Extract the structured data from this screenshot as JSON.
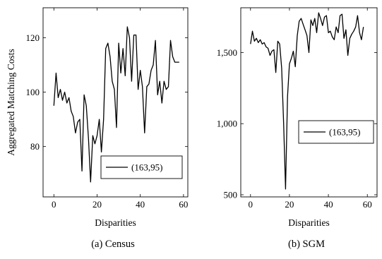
{
  "chart_data": [
    {
      "type": "line",
      "caption": "(a)  Census",
      "xlabel": "Disparities",
      "ylabel": "Aggregated Matching Costs",
      "xlim": [
        -5,
        62
      ],
      "ylim": [
        61.5,
        131
      ],
      "xticks": [
        0,
        20,
        40,
        60
      ],
      "yticks": [
        80,
        100,
        120
      ],
      "ytick_labels": [
        "80",
        "100",
        "120"
      ],
      "legend": {
        "position": "bottom-right",
        "label": "(163,95)"
      },
      "series": [
        {
          "name": "(163,95)",
          "x": [
            0,
            1,
            2,
            3,
            4,
            5,
            6,
            7,
            8,
            9,
            10,
            11,
            12,
            13,
            14,
            15,
            16,
            17,
            18,
            19,
            20,
            21,
            22,
            23,
            24,
            25,
            26,
            27,
            28,
            29,
            30,
            31,
            32,
            33,
            34,
            35,
            36,
            37,
            38,
            39,
            40,
            41,
            42,
            43,
            44,
            45,
            46,
            47,
            48,
            49,
            50,
            51,
            52,
            53,
            54,
            55,
            56,
            57,
            58
          ],
          "y": [
            95,
            107,
            98,
            101,
            97,
            100,
            96,
            98,
            93,
            91,
            85,
            89,
            90,
            71,
            99,
            95,
            83,
            67,
            84,
            81,
            84,
            90,
            78,
            90,
            116,
            118,
            113,
            104,
            101,
            87,
            118,
            107,
            116,
            106,
            124,
            120,
            104,
            121,
            121,
            101,
            108,
            102,
            85,
            102,
            103,
            108,
            110,
            119,
            99,
            104,
            96,
            104,
            101,
            102,
            119,
            113,
            111,
            111,
            111
          ]
        }
      ]
    },
    {
      "type": "line",
      "caption": "(b)  SGM",
      "xlabel": "Disparities",
      "ylabel": "",
      "xlim": [
        -5,
        65
      ],
      "ylim": [
        485,
        1815
      ],
      "xticks": [
        0,
        20,
        40,
        60
      ],
      "yticks": [
        500,
        1000,
        1500
      ],
      "ytick_labels": [
        "500",
        "1,000",
        "1,500"
      ],
      "legend": {
        "position": "center-right",
        "label": "(163,95)"
      },
      "series": [
        {
          "name": "(163,95)",
          "x": [
            0,
            1,
            2,
            3,
            4,
            5,
            6,
            7,
            8,
            9,
            10,
            11,
            12,
            13,
            14,
            15,
            16,
            17,
            18,
            19,
            20,
            21,
            22,
            23,
            24,
            25,
            26,
            27,
            28,
            29,
            30,
            31,
            32,
            33,
            34,
            35,
            36,
            37,
            38,
            39,
            40,
            41,
            42,
            43,
            44,
            45,
            46,
            47,
            48,
            49,
            50,
            51,
            52,
            53,
            54,
            55,
            56,
            57,
            58
          ],
          "y": [
            1560,
            1650,
            1580,
            1600,
            1570,
            1590,
            1560,
            1570,
            1540,
            1530,
            1480,
            1510,
            1520,
            1360,
            1580,
            1560,
            1390,
            1000,
            540,
            1190,
            1420,
            1460,
            1510,
            1400,
            1620,
            1720,
            1740,
            1700,
            1660,
            1620,
            1500,
            1730,
            1690,
            1740,
            1640,
            1780,
            1740,
            1690,
            1750,
            1760,
            1640,
            1650,
            1610,
            1590,
            1680,
            1640,
            1760,
            1770,
            1600,
            1660,
            1480,
            1600,
            1630,
            1650,
            1680,
            1760,
            1640,
            1590,
            1680
          ]
        }
      ]
    }
  ]
}
